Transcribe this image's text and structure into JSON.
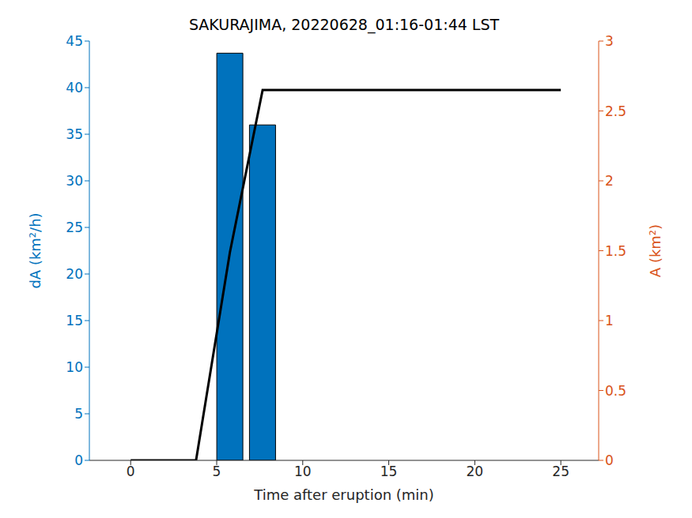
{
  "chart_data": {
    "type": "bar",
    "title": "SAKURAJIMA, 20220628_01:16-01:44 LST",
    "x_label": "Time after eruption (min)",
    "y_label": "dA (km²/h)",
    "y2_label": "A (km²)",
    "xlim": [
      -2.4,
      27.2
    ],
    "xticks": [
      0,
      5,
      10,
      15,
      20,
      25
    ],
    "ylim": [
      0,
      45
    ],
    "yticks": [
      0,
      5,
      10,
      15,
      20,
      25,
      30,
      35,
      40,
      45
    ],
    "y2lim": [
      0,
      3
    ],
    "y2ticks": [
      0,
      0.5,
      1,
      1.5,
      2,
      2.5,
      3
    ],
    "grid": false,
    "series": [
      {
        "type": "bar",
        "color": "#0072bd",
        "x": [
          5.77,
          7.67
        ],
        "values": [
          43.7,
          36.0
        ]
      },
      {
        "type": "line",
        "color": "#000000",
        "axis": "y2",
        "x": [
          0,
          3.8,
          5.77,
          7.67,
          25
        ],
        "values": [
          0,
          0,
          1.49,
          2.65,
          2.65
        ]
      }
    ]
  }
}
